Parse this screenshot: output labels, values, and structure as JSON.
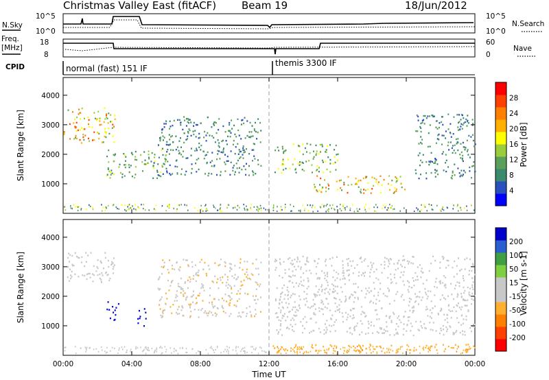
{
  "header": {
    "title": "Christmas Valley East (fitACF)",
    "beam": "Beam 19",
    "date": "18/Jun/2012"
  },
  "strips": {
    "nsky_label": "N.Sky",
    "nsky_ticks": [
      "10^5",
      "10^0"
    ],
    "nsearch_label": "N.Search",
    "nsearch_ticks": [
      "10^5",
      "10^0"
    ],
    "freq_label_1": "Freq.",
    "freq_label_2": "[MHz]",
    "freq_ticks": [
      "18",
      "8"
    ],
    "nave_label": "Nave",
    "nave_ticks": [
      "60",
      "0"
    ],
    "cpid_label": "CPID",
    "cpid_mode_1": "normal (fast) 151 IF",
    "cpid_mode_2": "themis 3300 IF"
  },
  "colors": {
    "power_scale": [
      "#0000ff",
      "#2a4fbf",
      "#3c8a6e",
      "#5aa05a",
      "#9acc3c",
      "#ffff00",
      "#ffb000",
      "#ff8000",
      "#ff4000",
      "#ff0000"
    ],
    "velocity_scale": [
      "#0000cc",
      "#2a5fd0",
      "#40a040",
      "#7fd040",
      "#c8c8c8",
      "#c8c8c8",
      "#ffb030",
      "#ff8000",
      "#ff4000",
      "#ff0000"
    ],
    "divider": "#b0b0b0"
  },
  "chart_data": [
    {
      "type": "heatmap",
      "name": "power",
      "ylabel": "Slant Range [km]",
      "ylim": [
        0,
        4600
      ],
      "xlim": [
        "00:00",
        "24:00"
      ],
      "x_ticks": [
        "00:00",
        "04:00",
        "08:00",
        "12:00",
        "16:00",
        "20:00",
        "00:00"
      ],
      "y_ticks": [
        1000,
        2000,
        3000,
        4000
      ],
      "colorbar": {
        "label": "Power [dB]",
        "ticks": [
          "28",
          "24",
          "20",
          "16",
          "12",
          "8",
          "4"
        ],
        "range": [
          0,
          30
        ]
      },
      "echo_regions": [
        {
          "t0": 0.0,
          "t1": 3.0,
          "r0": 2400,
          "r1": 3600,
          "peak_db": 26
        },
        {
          "t0": 2.5,
          "t1": 6.0,
          "r0": 1200,
          "r1": 2200,
          "peak_db": 16
        },
        {
          "t0": 5.5,
          "t1": 11.5,
          "r0": 1300,
          "r1": 3300,
          "peak_db": 12
        },
        {
          "t0": 12.3,
          "t1": 16.0,
          "r0": 1400,
          "r1": 2400,
          "peak_db": 18
        },
        {
          "t0": 14.5,
          "t1": 20.0,
          "r0": 700,
          "r1": 1300,
          "peak_db": 26
        },
        {
          "t0": 20.5,
          "t1": 24.0,
          "r0": 1200,
          "r1": 3400,
          "peak_db": 12
        }
      ]
    },
    {
      "type": "heatmap",
      "name": "velocity",
      "ylabel": "Slant Range [km]",
      "xlabel": "Time UT",
      "ylim": [
        0,
        4600
      ],
      "xlim": [
        "00:00",
        "24:00"
      ],
      "x_ticks": [
        "00:00",
        "04:00",
        "08:00",
        "12:00",
        "16:00",
        "20:00",
        "00:00"
      ],
      "y_ticks": [
        1000,
        2000,
        3000,
        4000
      ],
      "colorbar": {
        "label": "Velocity [m s-1]",
        "ticks": [
          "200",
          "100",
          "50",
          "15",
          "-15",
          "-50",
          "-100",
          "-200"
        ],
        "range": [
          -250,
          250
        ]
      },
      "echo_regions": [
        {
          "t0": 0.0,
          "t1": 3.0,
          "r0": 2500,
          "r1": 3500,
          "vel": -20
        },
        {
          "t0": 2.5,
          "t1": 3.2,
          "r0": 1200,
          "r1": 1900,
          "vel": 220
        },
        {
          "t0": 4.3,
          "t1": 4.8,
          "r0": 900,
          "r1": 1600,
          "vel": 220
        },
        {
          "t0": 5.5,
          "t1": 11.5,
          "r0": 1300,
          "r1": 3300,
          "vel": -40
        },
        {
          "t0": 12.3,
          "t1": 24.0,
          "r0": 700,
          "r1": 3400,
          "vel": 0
        },
        {
          "t0": 12.0,
          "t1": 24.0,
          "r0": 100,
          "r1": 400,
          "vel": -80
        }
      ]
    }
  ],
  "hover_text": "Christmas Valley East (fitACF) Beam 19 18/Jun/2012"
}
